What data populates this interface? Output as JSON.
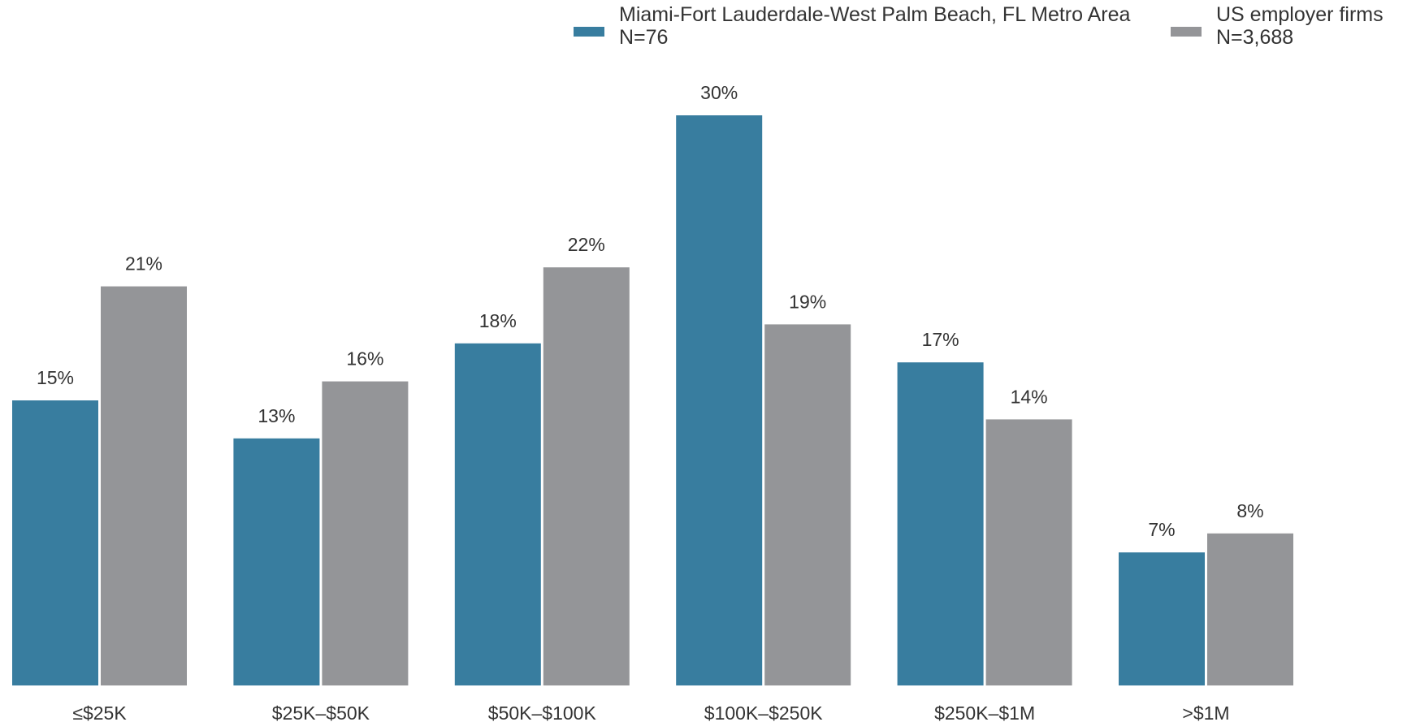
{
  "chart_data": {
    "type": "bar",
    "categories": [
      "≤$25K",
      "$25K–$50K",
      "$50K–$100K",
      "$100K–$250K",
      "$250K–$1M",
      ">$1M"
    ],
    "series": [
      {
        "name": "Miami-Fort Lauderdale-West Palm Beach, FL Metro Area",
        "sample": "N=76",
        "color": "#387d9f",
        "values": [
          15,
          13,
          18,
          30,
          17,
          7
        ],
        "labels": [
          "15%",
          "13%",
          "18%",
          "30%",
          "17%",
          "7%"
        ]
      },
      {
        "name": "US employer firms",
        "sample": "N=3,688",
        "color": "#949598",
        "values": [
          21,
          16,
          22,
          19,
          14,
          8
        ],
        "labels": [
          "21%",
          "16%",
          "22%",
          "19%",
          "14%",
          "8%"
        ]
      }
    ],
    "ylim": [
      0,
      30
    ],
    "grid": false,
    "legend_position": "top-right",
    "value_format": "percent"
  }
}
